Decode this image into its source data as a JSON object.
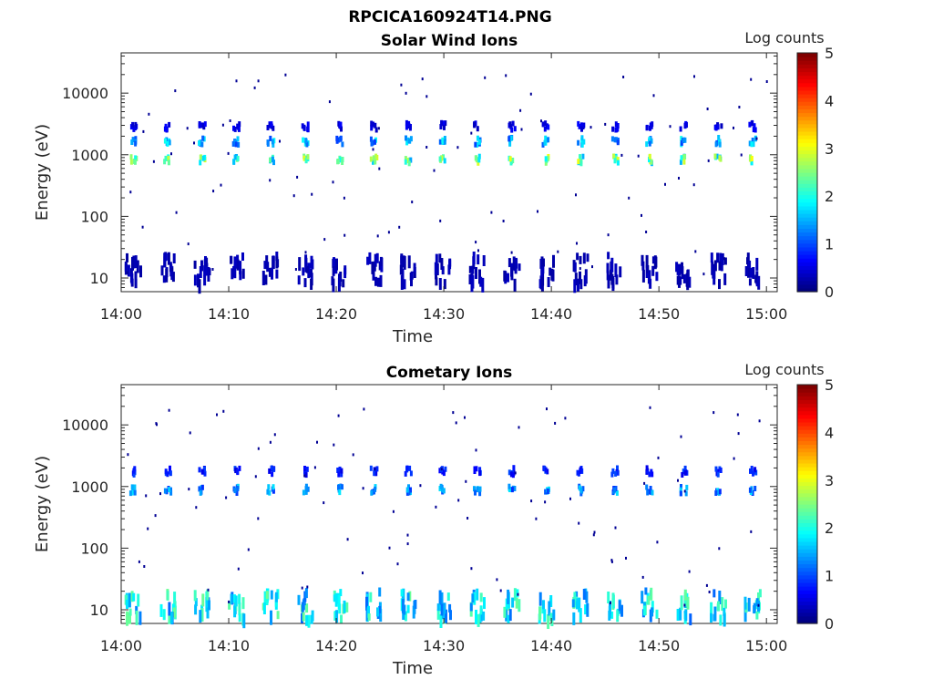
{
  "figure": {
    "title": "RPCICA160924T14.PNG"
  },
  "chart_data": [
    {
      "type": "heatmap",
      "title": "Solar Wind Ions",
      "xlabel": "Time",
      "ylabel": "Energy (eV)",
      "x_ticks": [
        "14:00",
        "14:10",
        "14:20",
        "14:30",
        "14:40",
        "14:50",
        "15:00"
      ],
      "x_range_minutes": [
        0,
        61
      ],
      "y_ticks": [
        "10",
        "100",
        "1000",
        "10000"
      ],
      "y_scale": "log",
      "y_range": [
        6,
        45000
      ],
      "colorbar": {
        "label": "Log counts",
        "range": [
          0,
          5
        ],
        "ticks": [
          "0",
          "1",
          "2",
          "3",
          "4",
          "5"
        ],
        "colormap": "jet"
      },
      "grid": false,
      "pattern": {
        "sweep_period_min": 3.2,
        "sweep_start_min": 1.0,
        "bands": [
          {
            "energy_ev": 800,
            "peak_log_counts": 2.8
          },
          {
            "energy_ev": 1600,
            "peak_log_counts": 1.8
          },
          {
            "energy_ev": 2800,
            "peak_log_counts": 0.6
          },
          {
            "energy_ev": 14,
            "peak_log_counts": 0.3
          }
        ]
      }
    },
    {
      "type": "heatmap",
      "title": "Cometary Ions",
      "xlabel": "Time",
      "ylabel": "Energy (eV)",
      "x_ticks": [
        "14:00",
        "14:10",
        "14:20",
        "14:30",
        "14:40",
        "14:50",
        "15:00"
      ],
      "x_range_minutes": [
        0,
        61
      ],
      "y_ticks": [
        "10",
        "100",
        "1000",
        "10000"
      ],
      "y_scale": "log",
      "y_range": [
        6,
        45000
      ],
      "colorbar": {
        "label": "Log counts",
        "range": [
          0,
          5
        ],
        "ticks": [
          "0",
          "1",
          "2",
          "3",
          "4",
          "5"
        ],
        "colormap": "jet"
      },
      "grid": false,
      "pattern": {
        "sweep_period_min": 3.2,
        "sweep_start_min": 1.0,
        "bands": [
          {
            "energy_ev": 850,
            "peak_log_counts": 1.6
          },
          {
            "energy_ev": 1700,
            "peak_log_counts": 0.9
          },
          {
            "energy_ev": 12,
            "peak_log_counts": 2.2
          }
        ]
      }
    }
  ]
}
